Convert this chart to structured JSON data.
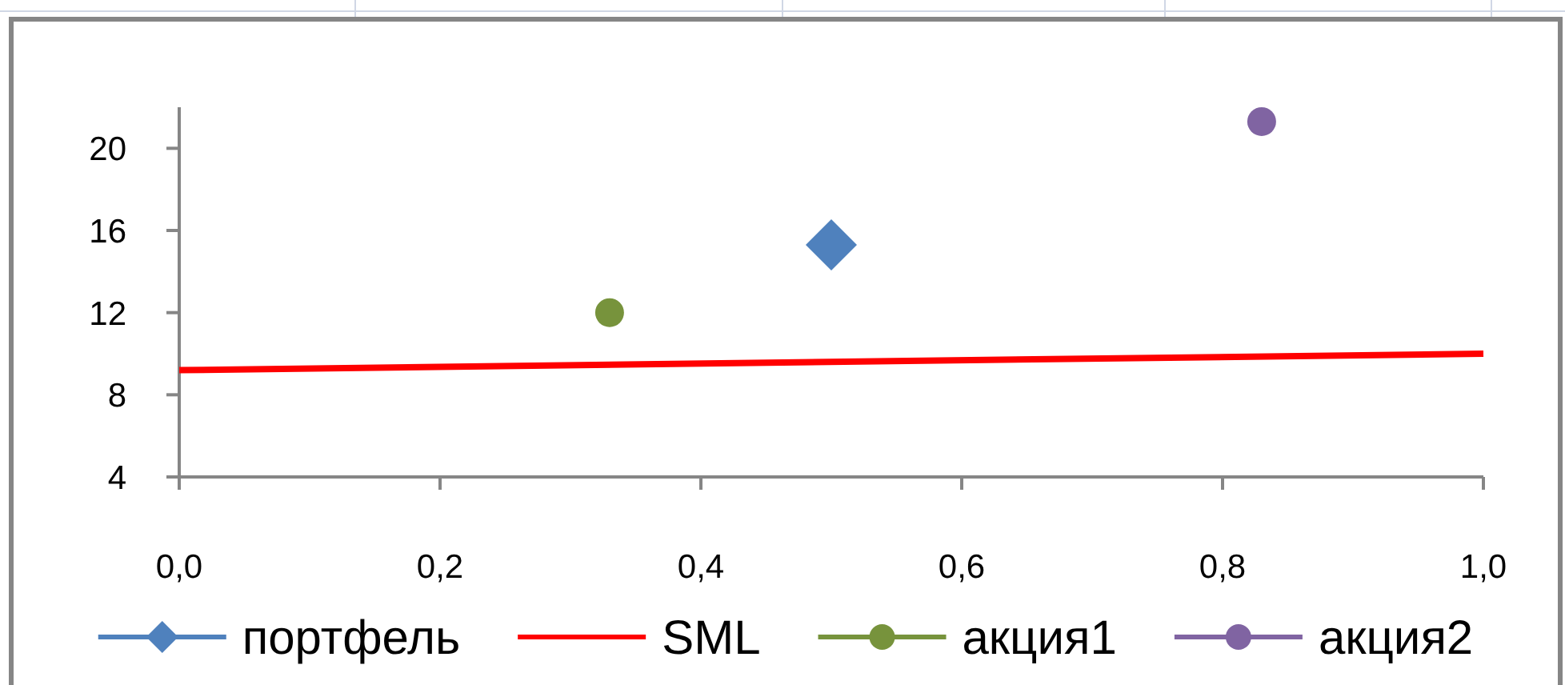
{
  "chart_data": {
    "type": "scatter",
    "legend": "bottom",
    "xlim": [
      0,
      1
    ],
    "xticks": [
      {
        "value": 0,
        "label": "0,0"
      },
      {
        "value": 0.2,
        "label": "0,2"
      },
      {
        "value": 0.4,
        "label": "0,4"
      },
      {
        "value": 0.6,
        "label": "0,6"
      },
      {
        "value": 0.8,
        "label": "0,8"
      },
      {
        "value": 1,
        "label": "1,0"
      }
    ],
    "ylim": [
      4,
      22
    ],
    "yticks": [
      4,
      8,
      12,
      16,
      20
    ],
    "series": [
      {
        "name": "портфель",
        "marker": "diamond",
        "color": "#4f81bd",
        "x": [
          0.5
        ],
        "values": [
          15.3
        ]
      },
      {
        "name": "SML",
        "type": "line",
        "marker": "none",
        "color": "#ff0000",
        "x": [
          0,
          1
        ],
        "values": [
          9.2,
          10.0
        ]
      },
      {
        "name": "акция1",
        "marker": "circle",
        "color": "#77933c",
        "x": [
          0.33
        ],
        "values": [
          12
        ]
      },
      {
        "name": "акция2",
        "marker": "circle",
        "color": "#8064a2",
        "x": [
          0.83
        ],
        "values": [
          21.3
        ]
      }
    ]
  }
}
